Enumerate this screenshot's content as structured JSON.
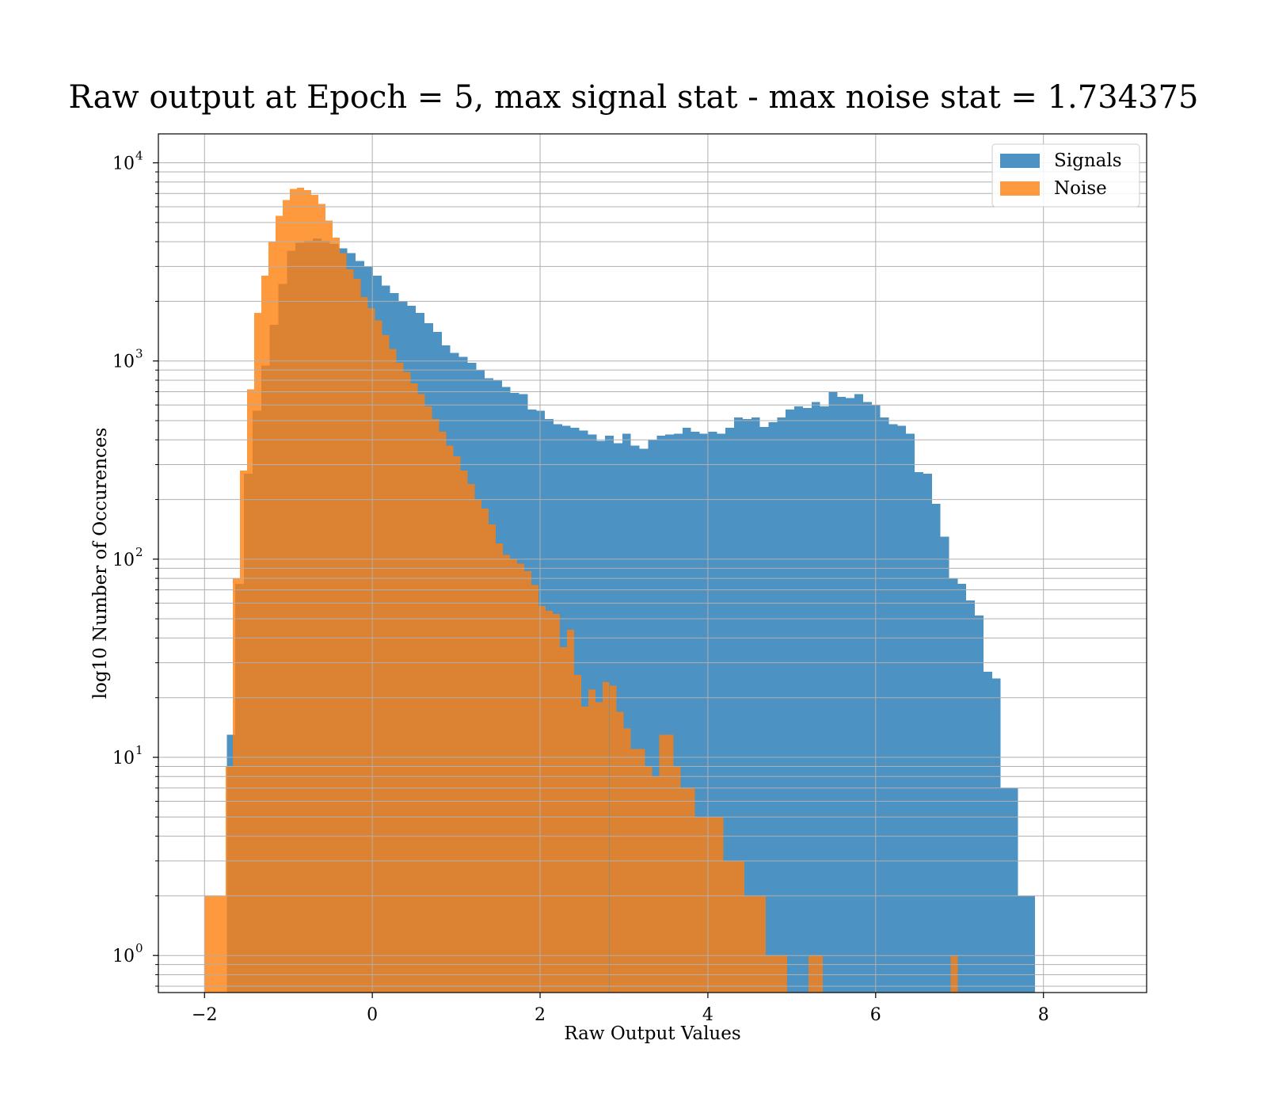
{
  "chart_data": {
    "type": "bar",
    "title": "Raw output at Epoch = 5, max signal stat - max noise stat = 1.734375",
    "xlabel": "Raw Output Values",
    "ylabel": "log10 Number of Occurences",
    "xlim": [
      -2.55,
      9.23
    ],
    "ylim": [
      0.65,
      14000
    ],
    "yscale": "log",
    "grid": true,
    "legend_position": "top-right",
    "x_ticks": [
      {
        "value": -2,
        "label": "−2"
      },
      {
        "value": 0,
        "label": "0"
      },
      {
        "value": 2,
        "label": "2"
      },
      {
        "value": 4,
        "label": "4"
      },
      {
        "value": 6,
        "label": "6"
      },
      {
        "value": 8,
        "label": "8"
      }
    ],
    "y_ticks": [
      {
        "value": 1,
        "base": "10",
        "exp": "0"
      },
      {
        "value": 10,
        "base": "10",
        "exp": "1"
      },
      {
        "value": 100,
        "base": "10",
        "exp": "2"
      },
      {
        "value": 1000,
        "base": "10",
        "exp": "3"
      },
      {
        "value": 10000,
        "base": "10",
        "exp": "4"
      }
    ],
    "series": [
      {
        "name": "Signals",
        "color": "#1f77b4",
        "opacity": 0.8,
        "bin_start": -1.94,
        "bin_width": 0.1025,
        "values": [
          0,
          0,
          13,
          75,
          270,
          560,
          950,
          1520,
          2450,
          3600,
          3950,
          4050,
          4150,
          4050,
          3900,
          3700,
          3500,
          3200,
          3000,
          2700,
          2400,
          2200,
          2000,
          1900,
          1750,
          1550,
          1400,
          1200,
          1100,
          1050,
          980,
          900,
          820,
          800,
          740,
          690,
          680,
          570,
          560,
          510,
          480,
          470,
          460,
          445,
          425,
          395,
          420,
          385,
          430,
          375,
          360,
          400,
          420,
          425,
          430,
          460,
          440,
          430,
          440,
          430,
          460,
          520,
          510,
          520,
          465,
          490,
          520,
          570,
          590,
          580,
          620,
          590,
          700,
          660,
          650,
          680,
          620,
          600,
          520,
          480,
          470,
          430,
          275,
          270,
          190,
          130,
          80,
          75,
          62,
          52,
          27,
          25,
          7,
          7,
          2,
          2
        ]
      },
      {
        "name": "Noise",
        "color": "#ff7f0e",
        "opacity": 0.8,
        "bin_start": -2.0,
        "bin_width": 0.0847,
        "values": [
          2,
          2,
          2,
          9,
          80,
          280,
          720,
          1750,
          2700,
          4000,
          5400,
          6500,
          7400,
          7500,
          7300,
          6900,
          6200,
          5100,
          4200,
          3500,
          2900,
          2600,
          2100,
          1850,
          1600,
          1350,
          1150,
          980,
          880,
          770,
          680,
          590,
          510,
          440,
          375,
          330,
          280,
          240,
          200,
          180,
          150,
          120,
          105,
          100,
          95,
          87,
          74,
          58,
          55,
          53,
          36,
          44,
          26,
          18,
          22,
          19,
          24,
          23,
          17,
          14,
          11,
          11,
          9,
          8,
          13,
          13,
          9,
          7,
          7,
          5,
          5,
          5,
          5,
          3,
          3,
          3,
          2,
          2,
          2,
          1,
          1,
          1,
          0,
          0,
          0,
          1,
          1,
          0,
          0,
          0,
          0,
          0,
          0,
          0,
          0,
          0,
          0,
          0,
          0,
          0,
          0,
          0,
          0,
          0,
          0,
          1
        ]
      }
    ]
  }
}
